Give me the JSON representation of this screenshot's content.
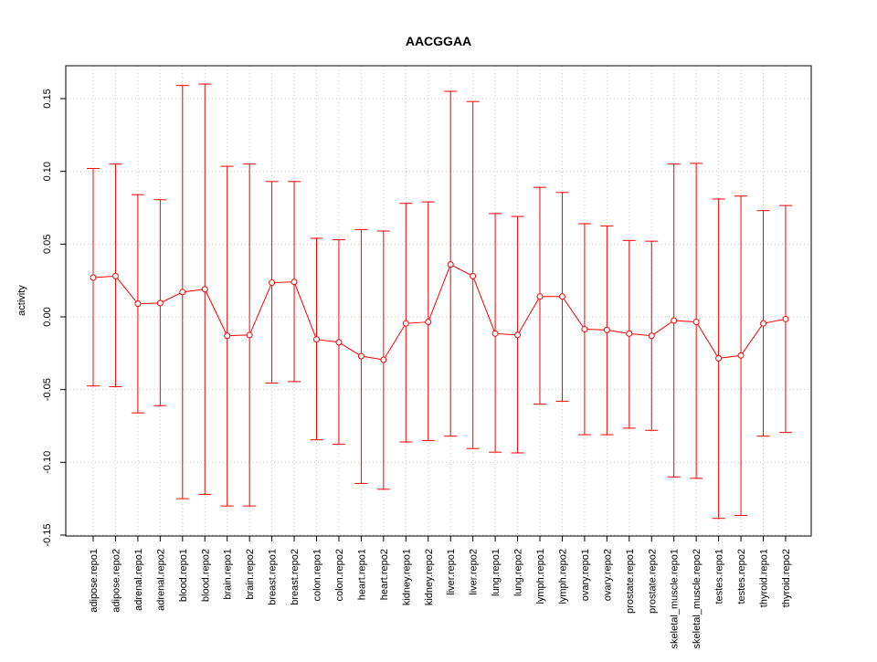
{
  "chart_data": {
    "type": "line",
    "title": "AACGGAA",
    "xlabel": "",
    "ylabel": "activity",
    "ylim": [
      -0.15,
      0.15
    ],
    "yticks": [
      -0.15,
      -0.1,
      -0.05,
      0.0,
      0.05,
      0.1,
      0.15
    ],
    "ytick_labels": [
      "-0.15",
      "-0.10",
      "-0.05",
      "0.00",
      "0.05",
      "0.10",
      "0.15"
    ],
    "grid": true,
    "color": "#ff0000",
    "categories": [
      "adipose.repo1",
      "adipose.repo2",
      "adrenal.repo1",
      "adrenal.repo2",
      "blood.repo1",
      "blood.repo2",
      "brain.repo1",
      "brain.repo2",
      "breast.repo1",
      "breast.repo2",
      "colon.repo1",
      "colon.repo2",
      "heart.repo1",
      "heart.repo2",
      "kidney.repo1",
      "kidney.repo2",
      "liver.repo1",
      "liver.repo2",
      "lung.repo1",
      "lung.repo2",
      "lymph.repo1",
      "lymph.repo2",
      "ovary.repo1",
      "ovary.repo2",
      "prostate.repo1",
      "prostate.repo2",
      "skeletal_muscle.repo1",
      "skeletal_muscle.repo2",
      "testes.repo1",
      "testes.repo2",
      "thyroid.repo1",
      "thyroid.repo2"
    ],
    "series": [
      {
        "values": [
          0.027,
          0.028,
          0.009,
          0.0095,
          0.017,
          0.019,
          -0.013,
          -0.0125,
          0.0235,
          0.024,
          -0.0155,
          -0.0175,
          -0.027,
          -0.0295,
          -0.0045,
          -0.0035,
          0.036,
          0.028,
          -0.0115,
          -0.0125,
          0.014,
          0.014,
          -0.0085,
          -0.009,
          -0.0115,
          -0.013,
          -0.0025,
          -0.0035,
          -0.0285,
          -0.0265,
          -0.0045,
          -0.0015
        ],
        "upper": [
          0.102,
          0.105,
          0.084,
          0.0805,
          0.159,
          0.16,
          0.1035,
          0.105,
          0.093,
          0.093,
          0.054,
          0.053,
          0.06,
          0.059,
          0.078,
          0.079,
          0.155,
          0.148,
          0.071,
          0.069,
          0.089,
          0.0855,
          0.064,
          0.0625,
          0.0525,
          0.052,
          0.105,
          0.1055,
          0.081,
          0.083,
          0.073,
          0.0765
        ],
        "lower": [
          -0.0475,
          -0.048,
          -0.066,
          -0.061,
          -0.125,
          -0.122,
          -0.13,
          -0.13,
          -0.0455,
          -0.0445,
          -0.0845,
          -0.0875,
          -0.1145,
          -0.1185,
          -0.086,
          -0.085,
          -0.082,
          -0.0905,
          -0.093,
          -0.0935,
          -0.06,
          -0.058,
          -0.081,
          -0.081,
          -0.0765,
          -0.078,
          -0.11,
          -0.111,
          -0.1385,
          -0.1365,
          -0.082,
          -0.0795
        ]
      }
    ]
  }
}
